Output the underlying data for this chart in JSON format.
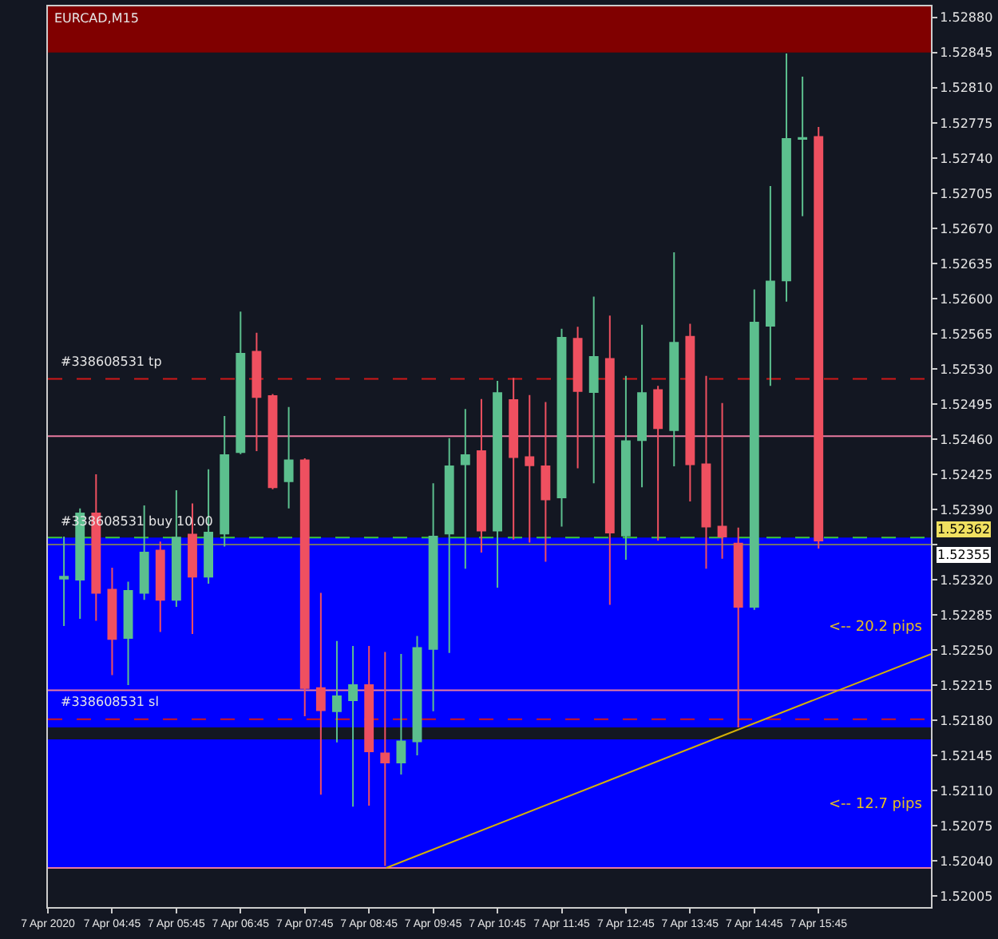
{
  "chart_data": {
    "type": "candlestick",
    "title": "EURCAD,M15",
    "x": [
      "2020-04-07T04:00",
      "2020-04-07T04:15",
      "2020-04-07T04:30",
      "2020-04-07T04:45",
      "2020-04-07T05:00",
      "2020-04-07T05:15",
      "2020-04-07T05:30",
      "2020-04-07T05:45",
      "2020-04-07T06:00",
      "2020-04-07T06:15",
      "2020-04-07T06:30",
      "2020-04-07T06:45",
      "2020-04-07T07:00",
      "2020-04-07T07:15",
      "2020-04-07T07:30",
      "2020-04-07T07:45",
      "2020-04-07T08:00",
      "2020-04-07T08:15",
      "2020-04-07T08:30",
      "2020-04-07T08:45",
      "2020-04-07T09:00",
      "2020-04-07T09:15",
      "2020-04-07T09:30",
      "2020-04-07T09:45",
      "2020-04-07T10:00",
      "2020-04-07T10:15",
      "2020-04-07T10:30",
      "2020-04-07T10:45",
      "2020-04-07T11:00",
      "2020-04-07T11:15",
      "2020-04-07T11:30",
      "2020-04-07T11:45",
      "2020-04-07T12:00",
      "2020-04-07T12:15",
      "2020-04-07T12:30",
      "2020-04-07T12:45",
      "2020-04-07T13:00",
      "2020-04-07T13:15",
      "2020-04-07T13:30",
      "2020-04-07T13:45",
      "2020-04-07T14:00",
      "2020-04-07T14:15",
      "2020-04-07T14:30",
      "2020-04-07T14:45",
      "2020-04-07T15:00",
      "2020-04-07T15:15",
      "2020-04-07T15:30",
      "2020-04-07T15:45"
    ],
    "ohlc": [
      [
        1.52321,
        1.52363,
        1.52274,
        1.52323
      ],
      [
        1.5232,
        1.52391,
        1.52281,
        1.52386
      ],
      [
        1.52386,
        1.52425,
        1.52279,
        1.52307
      ],
      [
        1.5231,
        1.52332,
        1.52225,
        1.52261
      ],
      [
        1.52262,
        1.52318,
        1.52215,
        1.52309
      ],
      [
        1.52307,
        1.52394,
        1.523,
        1.52347
      ],
      [
        1.52349,
        1.52358,
        1.52268,
        1.523
      ],
      [
        1.523,
        1.52409,
        1.52293,
        1.52362
      ],
      [
        1.52365,
        1.52396,
        1.52266,
        1.52323
      ],
      [
        1.52323,
        1.5243,
        1.52316,
        1.52367
      ],
      [
        1.52366,
        1.52483,
        1.52353,
        1.52444
      ],
      [
        1.52447,
        1.52587,
        1.52445,
        1.52545
      ],
      [
        1.52547,
        1.52566,
        1.52448,
        1.52502
      ],
      [
        1.52503,
        1.52505,
        1.5241,
        1.52412
      ],
      [
        1.52418,
        1.52492,
        1.52391,
        1.52439
      ],
      [
        1.52439,
        1.52441,
        1.52184,
        1.52212
      ],
      [
        1.52212,
        1.52307,
        1.52106,
        1.5219
      ],
      [
        1.52189,
        1.52259,
        1.52158,
        1.52204
      ],
      [
        1.522,
        1.52254,
        1.52094,
        1.52215
      ],
      [
        1.52215,
        1.52254,
        1.52095,
        1.52149
      ],
      [
        1.52147,
        1.52248,
        1.52035,
        1.52138
      ],
      [
        1.52138,
        1.52246,
        1.52126,
        1.52159
      ],
      [
        1.52159,
        1.52264,
        1.52145,
        1.52252
      ],
      [
        1.52251,
        1.52416,
        1.52189,
        1.52363
      ],
      [
        1.52366,
        1.52461,
        1.52247,
        1.52433
      ],
      [
        1.52435,
        1.5249,
        1.52331,
        1.52444
      ],
      [
        1.52448,
        1.525,
        1.52347,
        1.52369
      ],
      [
        1.52369,
        1.52518,
        1.52312,
        1.52506
      ],
      [
        1.52499,
        1.52521,
        1.5236,
        1.52442
      ],
      [
        1.52442,
        1.52504,
        1.52357,
        1.52434
      ],
      [
        1.52433,
        1.52497,
        1.52338,
        1.524
      ],
      [
        1.52402,
        1.5257,
        1.52373,
        1.52561
      ],
      [
        1.5256,
        1.52572,
        1.52431,
        1.52508
      ],
      [
        1.52507,
        1.52602,
        1.52416,
        1.52542
      ],
      [
        1.5254,
        1.52583,
        1.52295,
        1.52367
      ],
      [
        1.52364,
        1.52523,
        1.5234,
        1.52458
      ],
      [
        1.52459,
        1.52574,
        1.52412,
        1.52506
      ],
      [
        1.52509,
        1.52513,
        1.52359,
        1.52471
      ],
      [
        1.52469,
        1.52646,
        1.52433,
        1.52556
      ],
      [
        1.52562,
        1.52575,
        1.52398,
        1.52435
      ],
      [
        1.52435,
        1.52523,
        1.52331,
        1.52373
      ],
      [
        1.52373,
        1.52496,
        1.52341,
        1.52363
      ],
      [
        1.52356,
        1.52372,
        1.52173,
        1.52293
      ],
      [
        1.52293,
        1.52609,
        1.5229,
        1.52576
      ],
      [
        1.52573,
        1.52712,
        1.52513,
        1.52617
      ],
      [
        1.52618,
        1.52844,
        1.52597,
        1.52759
      ],
      [
        1.52759,
        1.52821,
        1.52682,
        1.5276
      ],
      [
        1.52761,
        1.52771,
        1.52351,
        1.52359
      ]
    ],
    "colors": [
      "#5cbf8e",
      "#5cbf8e",
      "#ef5060",
      "#ef5060",
      "#5cbf8e",
      "#5cbf8e",
      "#ef5060",
      "#5cbf8e",
      "#ef5060",
      "#5cbf8e",
      "#5cbf8e",
      "#5cbf8e",
      "#ef5060",
      "#ef5060",
      "#5cbf8e",
      "#ef5060",
      "#ef5060",
      "#5cbf8e",
      "#5cbf8e",
      "#ef5060",
      "#ef5060",
      "#5cbf8e",
      "#5cbf8e",
      "#5cbf8e",
      "#5cbf8e",
      "#5cbf8e",
      "#ef5060",
      "#5cbf8e",
      "#ef5060",
      "#ef5060",
      "#ef5060",
      "#5cbf8e",
      "#ef5060",
      "#5cbf8e",
      "#ef5060",
      "#5cbf8e",
      "#5cbf8e",
      "#ef5060",
      "#5cbf8e",
      "#ef5060",
      "#ef5060",
      "#ef5060",
      "#ef5060",
      "#5cbf8e",
      "#5cbf8e",
      "#5cbf8e",
      "#5cbf8e",
      "#ef5060"
    ],
    "series": [
      {
        "type": "line",
        "x": [
          "2020-04-07T09:01",
          "2020-04-07T17:30"
        ],
        "values": [
          1.52033,
          1.52246
        ],
        "color": "#d4b106"
      }
    ],
    "xlim": [
      "2020-04-07T03:45",
      "2020-04-07T17:30"
    ],
    "xticks": [
      {
        "value": "2020-04-07T03:45",
        "label": "7 Apr 2020"
      },
      {
        "value": "2020-04-07T04:45",
        "label": "7 Apr 04:45"
      },
      {
        "value": "2020-04-07T05:45",
        "label": "7 Apr 05:45"
      },
      {
        "value": "2020-04-07T06:45",
        "label": "7 Apr 06:45"
      },
      {
        "value": "2020-04-07T07:45",
        "label": "7 Apr 07:45"
      },
      {
        "value": "2020-04-07T08:45",
        "label": "7 Apr 08:45"
      },
      {
        "value": "2020-04-07T09:45",
        "label": "7 Apr 09:45"
      },
      {
        "value": "2020-04-07T10:45",
        "label": "7 Apr 10:45"
      },
      {
        "value": "2020-04-07T11:45",
        "label": "7 Apr 11:45"
      },
      {
        "value": "2020-04-07T12:45",
        "label": "7 Apr 12:45"
      },
      {
        "value": "2020-04-07T13:45",
        "label": "7 Apr 13:45"
      },
      {
        "value": "2020-04-07T14:45",
        "label": "7 Apr 14:45"
      },
      {
        "value": "2020-04-07T15:45",
        "label": "7 Apr 15:45"
      }
    ],
    "ylim": [
      1.51994,
      1.52891
    ],
    "yticks": [
      1.52005,
      {
        "value": 1.5204,
        "label": "1.52040"
      },
      1.52075,
      {
        "value": 1.5211,
        "label": "1.52110"
      },
      1.52145,
      {
        "value": 1.5218,
        "label": "1.52180"
      },
      1.52215,
      {
        "value": 1.5225,
        "label": "1.52250"
      },
      1.52285,
      {
        "value": 1.5232,
        "label": "1.52320"
      },
      {
        "value": 1.52355,
        "label": null
      },
      {
        "value": 1.5239,
        "label": "1.52390"
      },
      1.52425,
      {
        "value": 1.5246,
        "label": "1.52460"
      },
      1.52495,
      {
        "value": 1.5253,
        "label": "1.52530"
      },
      1.52565,
      {
        "value": 1.526,
        "label": "1.52600"
      },
      1.52635,
      {
        "value": 1.5267,
        "label": "1.52670"
      },
      1.52705,
      {
        "value": 1.5274,
        "label": "1.52740"
      },
      1.52775,
      {
        "value": 1.5281,
        "label": "1.52810"
      },
      1.52845,
      {
        "value": 1.5288,
        "label": "1.52880"
      }
    ],
    "ref_lines": [
      {
        "axis": "y",
        "value": 1.5252,
        "label": "#338608531 tp",
        "color": "#d01818",
        "line_style": "dashed"
      },
      {
        "axis": "y",
        "value": 1.52362,
        "label": "#338608531 buy 10.00",
        "color": "#3cc83c",
        "line_style": "dashed"
      },
      {
        "axis": "y",
        "value": 1.52181,
        "label": "#338608531 sl",
        "color": "#d01818",
        "line_style": "dashed"
      },
      {
        "axis": "y",
        "value": 1.52355,
        "label": "1.52355",
        "color": "#707070",
        "line_style": "solid"
      },
      {
        "axis": "y",
        "value": 1.52463,
        "color": "#e87aa0",
        "line_style": "solid"
      },
      {
        "axis": "y",
        "value": 1.5221,
        "color": "#e87aa0",
        "line_style": "solid"
      },
      {
        "axis": "y",
        "value": 1.52033,
        "color": "#e87aa0",
        "line_style": "solid"
      }
    ],
    "bands": [
      {
        "axis": "y",
        "from": 1.52845,
        "to": 1.52891,
        "color": "#800000"
      },
      {
        "axis": "y",
        "from": 1.52173,
        "to": 1.52362,
        "color": "#0000ff"
      },
      {
        "axis": "y",
        "from": 1.52033,
        "to": 1.52161,
        "color": "#0000ff"
      }
    ],
    "annotations": [
      "1.52362",
      "<-- 20.2 pips",
      "<-- 12.7 pips"
    ],
    "grid": false
  }
}
